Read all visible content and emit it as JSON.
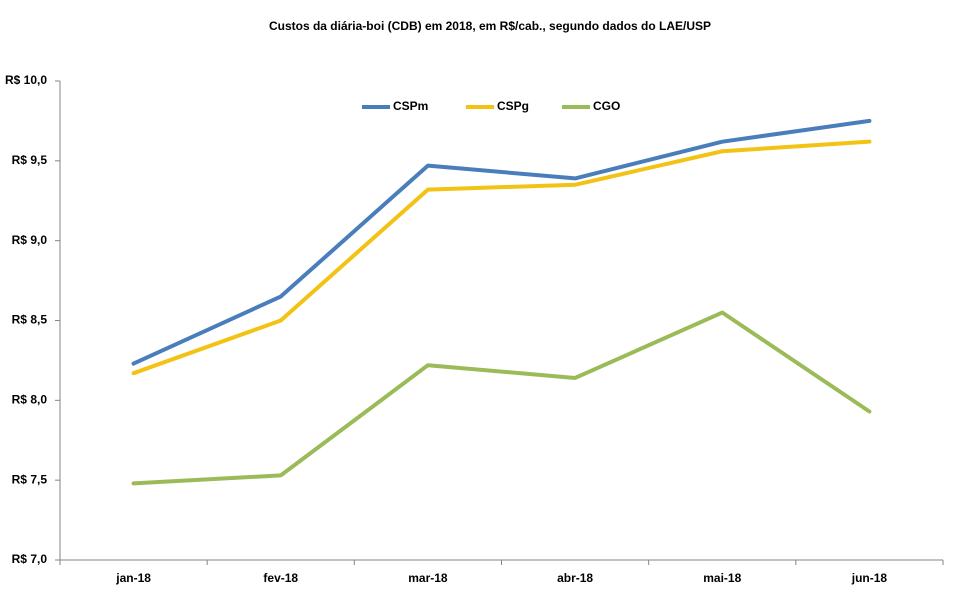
{
  "chart_data": {
    "type": "line",
    "title": "Custos da diária-boi (CDB) em 2018, em R$/cab., segundo dados do  LAE/USP",
    "categories": [
      "jan-18",
      "fev-18",
      "mar-18",
      "abr-18",
      "mai-18",
      "jun-18"
    ],
    "series": [
      {
        "name": "CSPm",
        "color": "#4a7ebb",
        "values": [
          8.23,
          8.65,
          9.47,
          9.39,
          9.62,
          9.75
        ]
      },
      {
        "name": "CSPg",
        "color": "#f2c314",
        "values": [
          8.17,
          8.5,
          9.32,
          9.35,
          9.56,
          9.62
        ]
      },
      {
        "name": "CGO",
        "color": "#9bbb59",
        "values": [
          7.48,
          7.53,
          8.22,
          8.14,
          8.55,
          7.93
        ]
      }
    ],
    "ylim": [
      7.0,
      10.0
    ],
    "yticks": [
      {
        "value": 7.0,
        "label": "R$ 7,0"
      },
      {
        "value": 7.5,
        "label": "R$ 7,5"
      },
      {
        "value": 8.0,
        "label": "R$ 8,0"
      },
      {
        "value": 8.5,
        "label": "R$ 8,5"
      },
      {
        "value": 9.0,
        "label": "R$ 9,0"
      },
      {
        "value": 9.5,
        "label": "R$ 9,5"
      },
      {
        "value": 10.0,
        "label": "R$ 10,0"
      }
    ],
    "grid": false,
    "legend": "top"
  }
}
